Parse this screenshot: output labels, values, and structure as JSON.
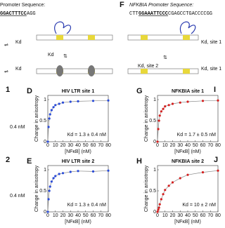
{
  "top": {
    "left_seq_label": "Promoter Sequence:",
    "left_seq_site": "GGACTTTCC",
    "left_seq_tail": "AGG",
    "panel_f": "F",
    "right_seq_label": "NFKBIA Promoter Sequence:",
    "right_seq_prefix": "CTT",
    "right_seq_site": "GGAAATTCCC",
    "right_seq_tail": "CGAGCCTGACCCCGG",
    "left_kd_top": "Kd",
    "left_kd_mid": "Kd",
    "left_kd_bottom": "Kd",
    "right_kd_site2": "Kd, site 2",
    "right_kd_top": "Kd, site 1",
    "right_kd_bottom": "Kd, site 1"
  },
  "side": {
    "left_top_label": "1",
    "left_top_note": "0.4 nM",
    "left_bottom_label": "2",
    "left_bottom_note": "0.4 nM",
    "right_top_label": "I",
    "right_bottom_label": "J"
  },
  "charts": [
    {
      "label": "D",
      "title": "HIV LTR site 1",
      "annotation": "Kd = 1.3 ± 0.4 nM",
      "color": "#2a4bd7",
      "x": [
        0,
        1,
        2,
        3,
        5,
        7.5,
        10,
        15,
        20,
        30,
        40,
        60,
        80
      ],
      "values": [
        0,
        0.35,
        0.55,
        0.65,
        0.75,
        0.82,
        0.87,
        0.9,
        0.93,
        0.95,
        0.96,
        0.97,
        0.98
      ],
      "xlim": [
        0,
        80
      ],
      "ylim": [
        0,
        1.1
      ],
      "xticks": [
        0,
        10,
        20,
        30,
        40,
        50,
        60,
        70,
        80
      ],
      "yticks": [
        0,
        0.5,
        1
      ],
      "xlabel": "[NFκB] (nM)",
      "ylabel": "Change in anisotropy"
    },
    {
      "label": "E",
      "title": "HIV LTR site 2",
      "annotation": "Kd = 1.3 ± 0.4 nM",
      "color": "#2a4bd7",
      "x": [
        0,
        1,
        2,
        3,
        5,
        7.5,
        10,
        15,
        20,
        30,
        40,
        60,
        80
      ],
      "values": [
        0,
        0.3,
        0.5,
        0.6,
        0.72,
        0.8,
        0.85,
        0.9,
        0.92,
        0.95,
        0.97,
        0.96,
        0.98
      ],
      "xlim": [
        0,
        80
      ],
      "ylim": [
        0,
        1.1
      ],
      "xticks": [
        0,
        10,
        20,
        30,
        40,
        50,
        60,
        70,
        80
      ],
      "yticks": [
        0,
        0.5,
        1
      ],
      "xlabel": "[NFκB] (nM)",
      "ylabel": "Change in anisotropy"
    },
    {
      "label": "G",
      "title": "NFKBIA site 1",
      "annotation": "Kd = 1.7 ± 0.5 nM",
      "color": "#d42020",
      "x": [
        0,
        1,
        2,
        3,
        5,
        7.5,
        10,
        15,
        20,
        30,
        40,
        60,
        80
      ],
      "values": [
        0,
        0.3,
        0.5,
        0.62,
        0.72,
        0.78,
        0.84,
        0.87,
        0.9,
        0.93,
        0.95,
        0.97,
        0.98
      ],
      "xlim": [
        0,
        80
      ],
      "ylim": [
        0,
        1.1
      ],
      "xticks": [
        0,
        10,
        20,
        30,
        40,
        50,
        60,
        70,
        80
      ],
      "yticks": [
        0,
        0.5,
        1
      ],
      "xlabel": "[NFκB] (nM)",
      "ylabel": "Change in anisotropy"
    },
    {
      "label": "H",
      "title": "NFKBIA site 2",
      "annotation": "Kd = 10 ± 2 nM",
      "color": "#d42020",
      "x": [
        0,
        1,
        2,
        3,
        5,
        7.5,
        10,
        15,
        20,
        30,
        40,
        60,
        80
      ],
      "values": [
        0,
        0.05,
        0.1,
        0.18,
        0.3,
        0.42,
        0.52,
        0.62,
        0.7,
        0.8,
        0.88,
        0.94,
        0.98
      ],
      "xlim": [
        0,
        80
      ],
      "ylim": [
        0,
        1.1
      ],
      "xticks": [
        0,
        10,
        20,
        30,
        40,
        50,
        60,
        70,
        80
      ],
      "yticks": [
        0,
        0.5,
        1
      ],
      "xlabel": "[NFκB] (nM)",
      "ylabel": "Change in anisotropy"
    }
  ]
}
